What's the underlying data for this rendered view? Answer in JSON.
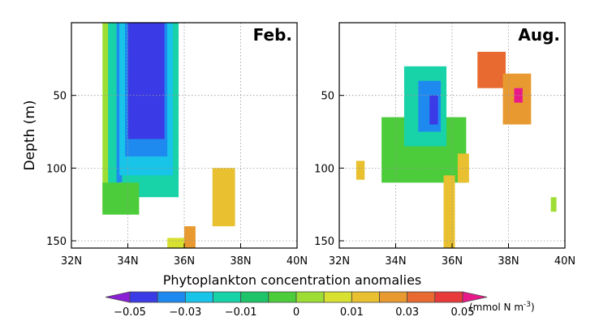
{
  "chart_data": [
    {
      "type": "heatmap",
      "panel": "Feb.",
      "ylabel": "Depth (m)",
      "xlim": [
        32,
        40
      ],
      "ylim": [
        0,
        155
      ],
      "x_ticks": [
        "32N",
        "34N",
        "36N",
        "38N",
        "40N"
      ],
      "x_tick_values": [
        32,
        34,
        36,
        38,
        40
      ],
      "y_ticks": [
        "50",
        "100",
        "150"
      ],
      "y_tick_values": [
        50,
        100,
        150
      ],
      "cells": [
        {
          "x0": 33.1,
          "x1": 33.6,
          "y0": 0,
          "y1": 130,
          "v": 0.0
        },
        {
          "x0": 33.3,
          "x1": 33.7,
          "y0": 0,
          "y1": 120,
          "v": -0.02
        },
        {
          "x0": 33.6,
          "x1": 33.8,
          "y0": 0,
          "y1": 110,
          "v": -0.04
        },
        {
          "x0": 33.8,
          "x1": 35.8,
          "y0": 0,
          "y1": 120,
          "v": -0.02
        },
        {
          "x0": 33.7,
          "x1": 35.6,
          "y0": 0,
          "y1": 105,
          "v": -0.03
        },
        {
          "x0": 33.9,
          "x1": 35.4,
          "y0": 0,
          "y1": 92,
          "v": -0.04
        },
        {
          "x0": 34.0,
          "x1": 35.3,
          "y0": 0,
          "y1": 80,
          "v": -0.05
        },
        {
          "x0": 33.1,
          "x1": 34.4,
          "y0": 110,
          "y1": 132,
          "v": -0.005
        },
        {
          "x0": 37.0,
          "x1": 37.8,
          "y0": 100,
          "y1": 140,
          "v": 0.015
        },
        {
          "x0": 36.0,
          "x1": 36.4,
          "y0": 140,
          "y1": 155,
          "v": 0.02
        },
        {
          "x0": 35.4,
          "x1": 36.0,
          "y0": 148,
          "y1": 155,
          "v": 0.008
        }
      ]
    },
    {
      "type": "heatmap",
      "panel": "Aug.",
      "ylabel": "Depth (m)",
      "xlim": [
        32,
        40
      ],
      "ylim": [
        0,
        155
      ],
      "x_ticks": [
        "32N",
        "34N",
        "36N",
        "38N",
        "40N"
      ],
      "x_tick_values": [
        32,
        34,
        36,
        38,
        40
      ],
      "y_ticks": [
        "50",
        "100",
        "150"
      ],
      "y_tick_values": [
        50,
        100,
        150
      ],
      "cells": [
        {
          "x0": 33.5,
          "x1": 36.5,
          "y0": 65,
          "y1": 110,
          "v": -0.005
        },
        {
          "x0": 34.3,
          "x1": 35.8,
          "y0": 30,
          "y1": 85,
          "v": -0.02
        },
        {
          "x0": 34.8,
          "x1": 35.6,
          "y0": 40,
          "y1": 75,
          "v": -0.04
        },
        {
          "x0": 35.2,
          "x1": 35.5,
          "y0": 50,
          "y1": 70,
          "v": -0.05
        },
        {
          "x0": 36.9,
          "x1": 37.9,
          "y0": 20,
          "y1": 45,
          "v": 0.03
        },
        {
          "x0": 37.8,
          "x1": 38.8,
          "y0": 35,
          "y1": 70,
          "v": 0.025
        },
        {
          "x0": 38.2,
          "x1": 38.5,
          "y0": 45,
          "y1": 55,
          "v": 0.05
        },
        {
          "x0": 35.7,
          "x1": 36.1,
          "y0": 105,
          "y1": 155,
          "v": 0.015
        },
        {
          "x0": 32.6,
          "x1": 32.9,
          "y0": 95,
          "y1": 108,
          "v": 0.01
        },
        {
          "x0": 36.2,
          "x1": 36.6,
          "y0": 90,
          "y1": 110,
          "v": 0.015
        },
        {
          "x0": 39.5,
          "x1": 39.7,
          "y0": 120,
          "y1": 130,
          "v": 0.0
        }
      ]
    }
  ],
  "panels": [
    {
      "label": "Feb."
    },
    {
      "label": "Aug."
    }
  ],
  "ylabel": "Depth (m)",
  "colorbar": {
    "title": "Phytoplankton concentration anomalies",
    "tick_labels": [
      "−0.05",
      "−0.03",
      "−0.01",
      "0",
      "0.01",
      "0.03",
      "0.05"
    ],
    "tick_values": [
      -0.05,
      -0.03,
      -0.01,
      0,
      0.01,
      0.03,
      0.05
    ],
    "levels": [
      -0.06,
      -0.05,
      -0.04,
      -0.03,
      -0.02,
      -0.01,
      -0.005,
      0,
      0.005,
      0.01,
      0.02,
      0.03,
      0.04,
      0.05,
      0.06
    ],
    "colors": [
      "#8a1fd6",
      "#3a3ae6",
      "#1e8af0",
      "#18c4e8",
      "#18d2a8",
      "#1ec46a",
      "#4ccc3a",
      "#9ede34",
      "#d8e030",
      "#e8c030",
      "#e89a30",
      "#e86a30",
      "#e83a3a",
      "#e81a8a"
    ],
    "units": "(mmol N m",
    "units_exp": "-3",
    "units_close": ")"
  }
}
